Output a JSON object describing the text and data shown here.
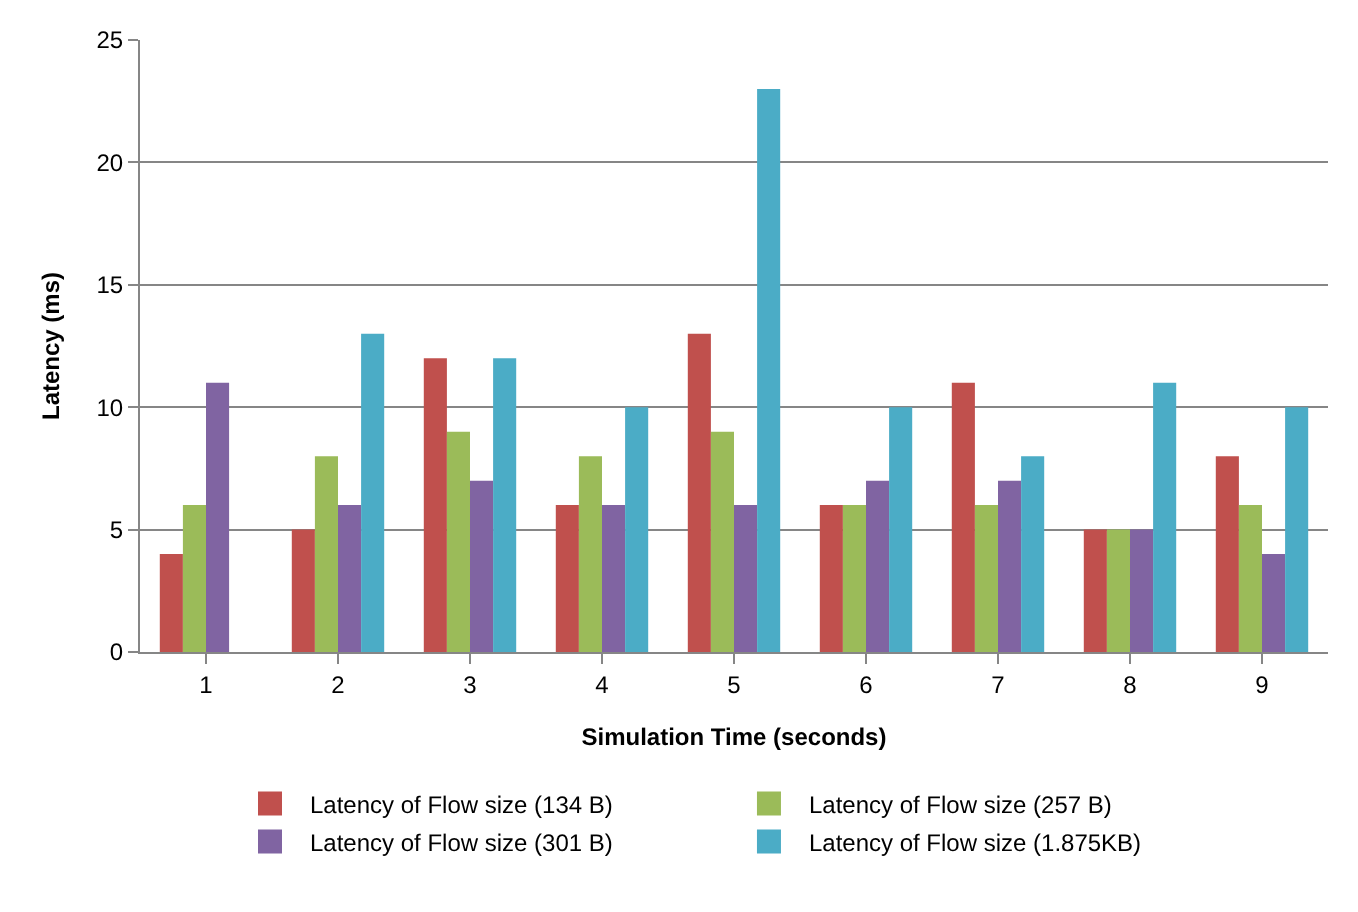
{
  "chart_data": {
    "type": "bar",
    "xlabel": "Simulation Time (seconds)",
    "ylabel": "Latency (ms)",
    "categories": [
      "1",
      "2",
      "3",
      "4",
      "5",
      "6",
      "7",
      "8",
      "9"
    ],
    "series": [
      {
        "name": "Latency of Flow size (134 B)",
        "color": "#c0504d",
        "values": [
          4,
          5,
          12,
          6,
          13,
          6,
          11,
          5,
          8
        ]
      },
      {
        "name": "Latency of Flow size (257 B)",
        "color": "#9bbb59",
        "values": [
          6,
          8,
          9,
          8,
          9,
          6,
          6,
          5,
          6
        ]
      },
      {
        "name": "Latency of Flow size (301 B)",
        "color": "#8064a2",
        "values": [
          11,
          6,
          7,
          6,
          6,
          7,
          7,
          5,
          4
        ]
      },
      {
        "name": "Latency of Flow size (1.875KB)",
        "color": "#4bacc6",
        "values": [
          null,
          13,
          12,
          10,
          23,
          10,
          8,
          11,
          10
        ]
      }
    ],
    "ylim": [
      0,
      25
    ],
    "yticks": [
      0,
      5,
      10,
      15,
      20,
      25
    ],
    "grid": "y",
    "legend": "bottom"
  }
}
